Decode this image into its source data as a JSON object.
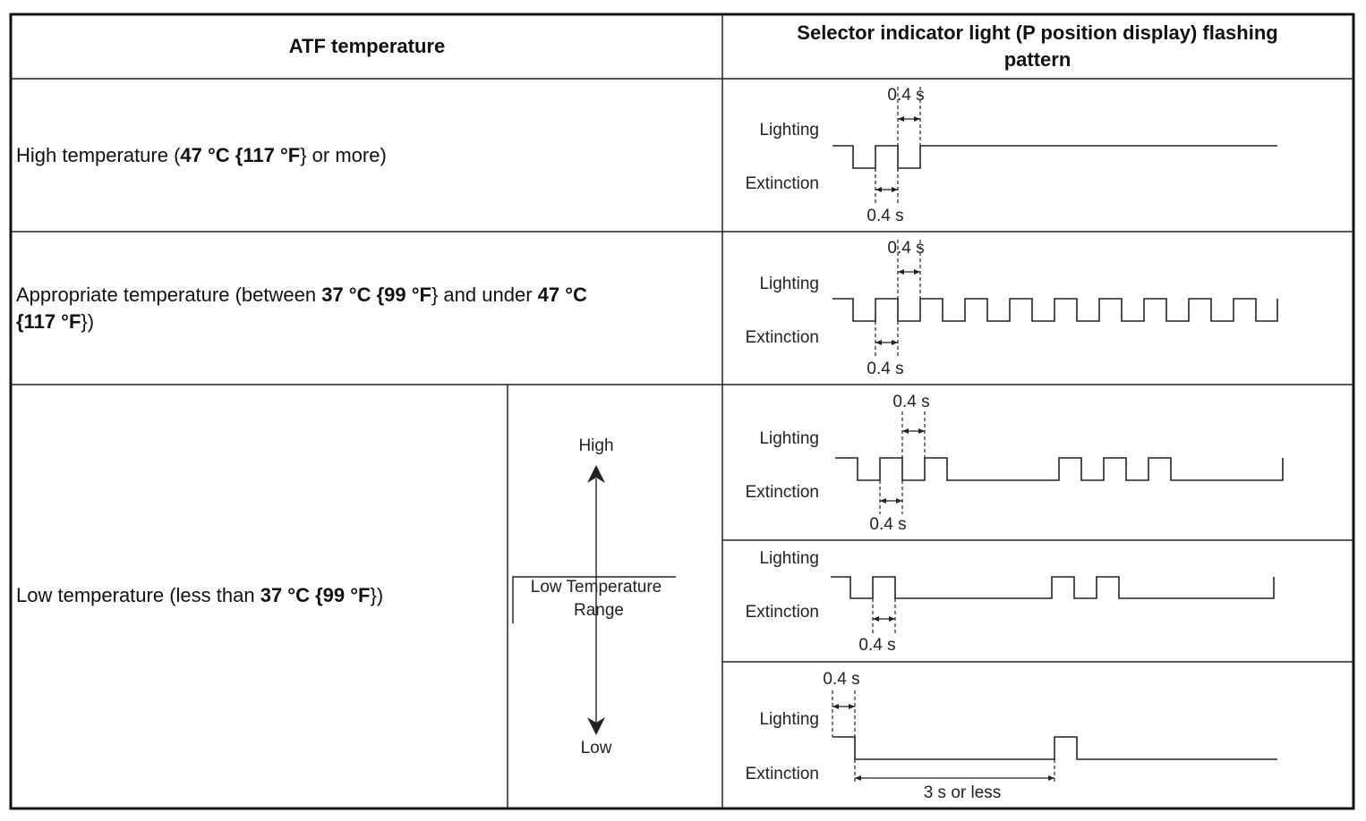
{
  "table": {
    "headers": [
      [
        "ATF temperature"
      ],
      [
        "Selector indicator light (P position display) flashing",
        "pattern"
      ]
    ],
    "rows": [
      {
        "temperature": [
          [
            {
              "text": "High temperature (",
              "bold": false
            },
            {
              "text": "47 °C {117 °F",
              "bold": true
            },
            {
              "text": "} or more)",
              "bold": false
            }
          ]
        ],
        "patterns": [
          {
            "lighting": "Lighting",
            "extinction": "Extinction",
            "top_label": "0.4 s",
            "bottom_label": "0.4 s"
          }
        ]
      },
      {
        "temperature": [
          [
            {
              "text": "Appropriate temperature (between ",
              "bold": false
            },
            {
              "text": "37 °C {99 °F",
              "bold": true
            },
            {
              "text": "} and under ",
              "bold": false
            },
            {
              "text": "47 °C",
              "bold": true
            }
          ],
          [
            {
              "text": "{117 °F",
              "bold": true
            },
            {
              "text": "})",
              "bold": false
            }
          ]
        ],
        "patterns": [
          {
            "lighting": "Lighting",
            "extinction": "Extinction",
            "top_label": "0.4 s",
            "bottom_label": "0.4 s"
          }
        ]
      },
      {
        "temperature": [
          [
            {
              "text": "Low temperature (less than ",
              "bold": false
            },
            {
              "text": "37 °C {99 °F",
              "bold": true
            },
            {
              "text": "})",
              "bold": false
            }
          ]
        ],
        "scale": {
          "high": "High",
          "range": [
            "Low Temperature",
            "Range"
          ],
          "low": "Low"
        },
        "patterns": [
          {
            "lighting": "Lighting",
            "extinction": "Extinction",
            "top_label": "0.4 s",
            "bottom_label": "0.4 s"
          },
          {
            "lighting": "Lighting",
            "extinction": "Extinction",
            "bottom_label": "0.4 s"
          },
          {
            "lighting": "Lighting",
            "extinction": "Extinction",
            "top_label": "0.4 s",
            "bottom_label": "3 s or less"
          }
        ]
      }
    ]
  }
}
